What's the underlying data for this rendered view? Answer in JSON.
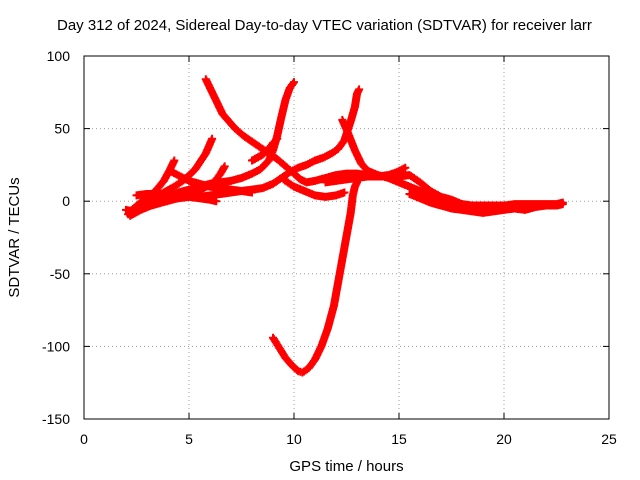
{
  "chart_data": {
    "type": "scatter",
    "title": "Day 312 of 2024, Sidereal Day-to-day VTEC variation (SDTVAR) for receiver larr",
    "xlabel": "GPS time / hours",
    "ylabel": "SDTVAR / TECUs",
    "xlim": [
      0,
      25
    ],
    "ylim": [
      -150,
      100
    ],
    "xticks": [
      0,
      5,
      10,
      15,
      20,
      25
    ],
    "yticks": [
      -150,
      -100,
      -50,
      0,
      50,
      100
    ],
    "grid": true,
    "marker": "plus",
    "color": "#ff0000",
    "series": [
      {
        "points": [
          [
            2.0,
            -6
          ],
          [
            2.3,
            -7
          ],
          [
            2.6,
            -5
          ],
          [
            3.0,
            -3
          ],
          [
            3.5,
            -1
          ],
          [
            4.0,
            1
          ],
          [
            4.5,
            2
          ],
          [
            5.0,
            3
          ],
          [
            5.5,
            3
          ],
          [
            6.0,
            4
          ],
          [
            6.5,
            5
          ],
          [
            7.0,
            6
          ],
          [
            7.5,
            7
          ],
          [
            8.0,
            8
          ],
          [
            8.5,
            9
          ],
          [
            9.0,
            12
          ],
          [
            9.4,
            16
          ],
          [
            9.8,
            20
          ],
          [
            10.2,
            23
          ],
          [
            10.6,
            25
          ],
          [
            11.0,
            28
          ],
          [
            11.4,
            30
          ],
          [
            11.8,
            33
          ],
          [
            12.1,
            36
          ],
          [
            12.4,
            42
          ],
          [
            12.7,
            55
          ],
          [
            12.9,
            65
          ],
          [
            13.0,
            74
          ],
          [
            13.1,
            77
          ]
        ]
      },
      {
        "points": [
          [
            5.8,
            84
          ],
          [
            6.0,
            78
          ],
          [
            6.2,
            72
          ],
          [
            6.4,
            66
          ],
          [
            6.6,
            60
          ],
          [
            6.9,
            55
          ],
          [
            7.2,
            50
          ],
          [
            7.6,
            45
          ],
          [
            8.0,
            41
          ],
          [
            8.4,
            37
          ],
          [
            8.8,
            33
          ],
          [
            9.2,
            29
          ],
          [
            9.6,
            24
          ],
          [
            10.0,
            19
          ],
          [
            10.3,
            15
          ],
          [
            10.6,
            13
          ],
          [
            11.0,
            14
          ],
          [
            11.5,
            16
          ],
          [
            12.0,
            18
          ],
          [
            12.5,
            19
          ],
          [
            13.0,
            19
          ],
          [
            13.5,
            18
          ],
          [
            14.0,
            17
          ],
          [
            14.5,
            17
          ],
          [
            15.0,
            17
          ],
          [
            15.5,
            18
          ],
          [
            16.0,
            13
          ],
          [
            16.5,
            7
          ],
          [
            17.0,
            3
          ],
          [
            17.5,
            1
          ],
          [
            18.0,
            -2
          ],
          [
            18.5,
            -4
          ],
          [
            19.0,
            -5
          ],
          [
            19.5,
            -5
          ],
          [
            20.0,
            -4
          ],
          [
            20.5,
            -5
          ],
          [
            21.0,
            -5
          ],
          [
            21.5,
            -4
          ],
          [
            22.0,
            -3
          ],
          [
            22.5,
            -3
          ],
          [
            22.8,
            -2
          ]
        ]
      },
      {
        "points": [
          [
            2.1,
            -9
          ],
          [
            2.5,
            -6
          ],
          [
            3.0,
            -3
          ],
          [
            3.5,
            0
          ],
          [
            4.0,
            3
          ],
          [
            4.5,
            6
          ],
          [
            5.0,
            8
          ],
          [
            5.5,
            10
          ],
          [
            6.0,
            12
          ],
          [
            6.5,
            13
          ],
          [
            7.0,
            14
          ],
          [
            7.5,
            16
          ],
          [
            8.0,
            19
          ],
          [
            8.4,
            22
          ],
          [
            8.8,
            28
          ],
          [
            9.0,
            35
          ],
          [
            9.2,
            45
          ],
          [
            9.4,
            58
          ],
          [
            9.6,
            70
          ],
          [
            9.8,
            78
          ],
          [
            10.0,
            82
          ]
        ]
      },
      {
        "points": [
          [
            2.2,
            -7
          ],
          [
            2.6,
            -2
          ],
          [
            3.0,
            2
          ],
          [
            3.4,
            7
          ],
          [
            3.8,
            14
          ],
          [
            4.1,
            22
          ],
          [
            4.3,
            28
          ]
        ]
      },
      {
        "points": [
          [
            2.3,
            -8
          ],
          [
            2.8,
            -3
          ],
          [
            3.3,
            2
          ],
          [
            3.8,
            6
          ],
          [
            4.3,
            10
          ],
          [
            4.8,
            15
          ],
          [
            5.3,
            22
          ],
          [
            5.8,
            33
          ],
          [
            6.1,
            43
          ]
        ]
      },
      {
        "points": [
          [
            4.2,
            20
          ],
          [
            4.6,
            17
          ],
          [
            5.0,
            14
          ],
          [
            5.5,
            12
          ],
          [
            6.0,
            10
          ],
          [
            6.5,
            9
          ],
          [
            7.0,
            8
          ],
          [
            7.5,
            7
          ],
          [
            8.0,
            6
          ]
        ]
      },
      {
        "points": [
          [
            2.2,
            -10
          ],
          [
            2.7,
            -6
          ],
          [
            3.2,
            -3
          ],
          [
            3.7,
            -1
          ],
          [
            4.2,
            1
          ],
          [
            4.7,
            3
          ],
          [
            5.2,
            6
          ],
          [
            5.7,
            9
          ],
          [
            6.2,
            13
          ],
          [
            6.5,
            19
          ],
          [
            6.7,
            24
          ]
        ]
      },
      {
        "points": [
          [
            2.5,
            4
          ],
          [
            3.0,
            5
          ],
          [
            3.5,
            5
          ],
          [
            4.0,
            5
          ],
          [
            4.5,
            4
          ],
          [
            5.0,
            3
          ],
          [
            5.5,
            2
          ],
          [
            6.0,
            1
          ],
          [
            6.3,
            0
          ]
        ]
      },
      {
        "points": [
          [
            8.0,
            28
          ],
          [
            8.5,
            32
          ],
          [
            8.8,
            36
          ],
          [
            9.0,
            40
          ],
          [
            9.2,
            43
          ]
        ]
      },
      {
        "points": [
          [
            9.0,
            -94
          ],
          [
            9.3,
            -101
          ],
          [
            9.6,
            -108
          ],
          [
            9.9,
            -113
          ],
          [
            10.2,
            -117
          ],
          [
            10.4,
            -118
          ],
          [
            10.7,
            -115
          ],
          [
            11.0,
            -109
          ],
          [
            11.3,
            -100
          ],
          [
            11.6,
            -88
          ],
          [
            11.9,
            -72
          ],
          [
            12.1,
            -56
          ],
          [
            12.3,
            -40
          ],
          [
            12.5,
            -24
          ],
          [
            12.7,
            -8
          ],
          [
            12.8,
            4
          ],
          [
            12.9,
            10
          ],
          [
            13.0,
            13
          ]
        ]
      },
      {
        "points": [
          [
            9.5,
            15
          ],
          [
            10.0,
            10
          ],
          [
            10.5,
            7
          ],
          [
            11.0,
            4
          ],
          [
            11.5,
            3
          ],
          [
            12.0,
            4
          ],
          [
            12.4,
            6
          ]
        ]
      },
      {
        "points": [
          [
            11.5,
            13
          ],
          [
            12.0,
            14
          ],
          [
            12.5,
            15
          ],
          [
            13.0,
            16
          ],
          [
            13.5,
            17
          ],
          [
            14.0,
            17
          ],
          [
            14.5,
            18
          ],
          [
            14.9,
            20
          ],
          [
            15.3,
            23
          ]
        ]
      },
      {
        "points": [
          [
            12.3,
            56
          ],
          [
            12.6,
            46
          ],
          [
            12.9,
            35
          ],
          [
            13.2,
            26
          ],
          [
            13.5,
            21
          ],
          [
            14.0,
            18
          ],
          [
            14.5,
            16
          ],
          [
            15.0,
            13
          ],
          [
            15.5,
            10
          ],
          [
            16.0,
            7
          ],
          [
            16.5,
            4
          ],
          [
            17.0,
            1
          ],
          [
            17.5,
            -1
          ],
          [
            18.0,
            -2
          ],
          [
            18.5,
            -3
          ],
          [
            19.0,
            -3
          ],
          [
            19.5,
            -3
          ],
          [
            20.0,
            -3
          ],
          [
            20.5,
            -2
          ],
          [
            21.0,
            -2
          ],
          [
            21.5,
            -2
          ],
          [
            22.0,
            -2
          ],
          [
            22.5,
            -2
          ],
          [
            22.8,
            -1
          ]
        ]
      },
      {
        "points": [
          [
            15.5,
            5
          ],
          [
            16.0,
            2
          ],
          [
            16.5,
            -1
          ],
          [
            17.0,
            -3
          ],
          [
            17.5,
            -5
          ],
          [
            18.0,
            -6
          ],
          [
            18.5,
            -7
          ],
          [
            19.0,
            -8
          ],
          [
            19.5,
            -7
          ],
          [
            20.0,
            -6
          ],
          [
            20.5,
            -5
          ],
          [
            21.0,
            -6
          ],
          [
            21.5,
            -4
          ]
        ]
      }
    ]
  }
}
